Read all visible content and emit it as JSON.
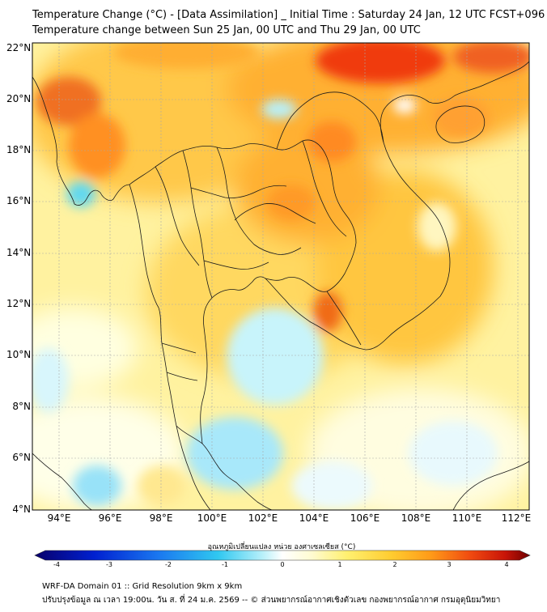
{
  "header": {
    "title_line1": "Temperature Change (°C) - [Data Assimilation] _ Initial Time : Saturday 24 Jan, 12 UTC FCST+096",
    "title_line2": "Temperature change between Sun 25 Jan, 00 UTC and Thu 29 Jan, 00 UTC"
  },
  "map": {
    "lat_labels": [
      "22°N",
      "20°N",
      "18°N",
      "16°N",
      "14°N",
      "12°N",
      "10°N",
      "8°N",
      "6°N",
      "4°N"
    ],
    "lon_labels": [
      "94°E",
      "96°E",
      "98°E",
      "100°E",
      "102°E",
      "104°E",
      "106°E",
      "108°E",
      "110°E",
      "112°E"
    ],
    "grid_color": "#999999",
    "boundary_color": "#1a1a1a"
  },
  "colorbar": {
    "title": "อุณหภูมิเปลี่ยนแปลง หน่วย องศาเซลเซียส (°C)",
    "ticks": [
      "-4",
      "-3",
      "-2",
      "-1",
      "0",
      "1",
      "2",
      "3",
      "4"
    ],
    "range": [
      -4,
      4
    ],
    "colors": [
      "#08006b",
      "#0020d0",
      "#1a78f0",
      "#30c8f0",
      "#b8f0fa",
      "#ffffff",
      "#fffbd0",
      "#fff070",
      "#ffcc30",
      "#ff9a18",
      "#f04a10",
      "#c81408",
      "#6e0000"
    ]
  },
  "footer": {
    "line1": "WRF-DA Domain 01 :: Grid Resolution 9km x 9km",
    "line2": "ปรับปรุงข้อมูล ณ เวลา 19:00น. วัน ส. ที่ 24 ม.ค. 2569 -- © ส่วนพยากรณ์อากาศเชิงตัวเลข กองพยากรณ์อากาศ กรมอุตุนิยมวิทยา"
  }
}
